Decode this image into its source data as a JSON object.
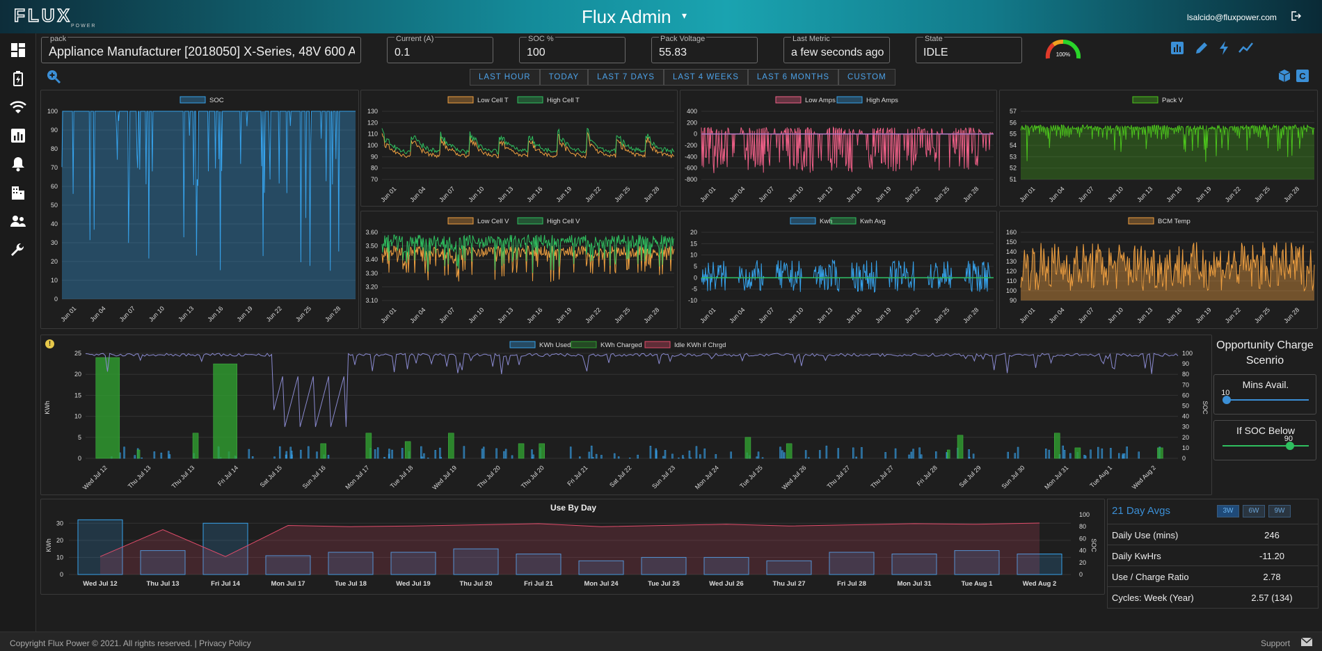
{
  "header": {
    "title": "Flux Admin",
    "user": "lsalcido@fluxpower.com",
    "logo_text": "FLUX POWER"
  },
  "fields": {
    "pack": {
      "label": "pack",
      "value": "Appliance Manufacturer [2018050] X-Series, 48V 600 A"
    },
    "current": {
      "label": "Current (A)",
      "value": "0.1"
    },
    "soc": {
      "label": "SOC %",
      "value": "100"
    },
    "voltage": {
      "label": "Pack Voltage",
      "value": "55.83"
    },
    "last_metric": {
      "label": "Last Metric",
      "value": "a few seconds ago"
    },
    "state": {
      "label": "State",
      "value": "IDLE"
    }
  },
  "gauge": {
    "label": "100%",
    "value": 100
  },
  "time_buttons": [
    "LAST HOUR",
    "TODAY",
    "LAST 7 DAYS",
    "LAST 4 WEEKS",
    "LAST 6 MONTHS",
    "CUSTOM"
  ],
  "icons": {
    "sidebar": [
      "dashboard-icon",
      "battery-icon",
      "wifi-icon",
      "chart-icon",
      "bell-icon",
      "building-icon",
      "users-icon",
      "wrench-icon"
    ],
    "toolbar": [
      "bar-chart-icon",
      "pencil-icon",
      "bolt-icon",
      "trend-line-icon"
    ],
    "zoom": "zoom-in-icon"
  },
  "colors": {
    "accent": "#3b8fd6",
    "blue": "#36a2eb",
    "orange": "#f0a040",
    "green": "#2fbf5f",
    "pink": "#f06088",
    "lime": "#4cc51c",
    "red": "#e04c6a"
  },
  "chart_data": [
    {
      "id": "soc",
      "type": "area",
      "legend": [
        "SOC"
      ],
      "ylim": [
        0,
        100
      ],
      "yticks": [
        0,
        10,
        20,
        30,
        40,
        50,
        60,
        70,
        80,
        90,
        100
      ],
      "xticks": [
        "Jun 01",
        "Jun 04",
        "Jun 07",
        "Jun 10",
        "Jun 13",
        "Jun 16",
        "Jun 19",
        "Jun 22",
        "Jun 25",
        "Jun 28"
      ]
    },
    {
      "id": "cellt",
      "type": "line",
      "legend": [
        "Low Cell T",
        "High Cell T"
      ],
      "ylim": [
        70,
        130
      ],
      "yticks": [
        70,
        80,
        90,
        100,
        110,
        120,
        130
      ],
      "xticks": [
        "Jun 01",
        "Jun 04",
        "Jun 07",
        "Jun 10",
        "Jun 13",
        "Jun 16",
        "Jun 19",
        "Jun 22",
        "Jun 25",
        "Jun 28"
      ]
    },
    {
      "id": "amps",
      "type": "line",
      "legend": [
        "Low Amps",
        "High Amps"
      ],
      "ylim": [
        -800,
        400
      ],
      "yticks": [
        -800,
        -600,
        -400,
        -200,
        0,
        200,
        400
      ],
      "xticks": [
        "Jun 01",
        "Jun 04",
        "Jun 07",
        "Jun 10",
        "Jun 13",
        "Jun 16",
        "Jun 19",
        "Jun 22",
        "Jun 25",
        "Jun 28"
      ]
    },
    {
      "id": "packv",
      "type": "area",
      "legend": [
        "Pack V"
      ],
      "ylim": [
        51,
        57
      ],
      "yticks": [
        51,
        52,
        53,
        54,
        55,
        56,
        57
      ],
      "xticks": [
        "Jun 01",
        "Jun 04",
        "Jun 07",
        "Jun 10",
        "Jun 13",
        "Jun 16",
        "Jun 19",
        "Jun 22",
        "Jun 25",
        "Jun 28"
      ]
    },
    {
      "id": "cellv",
      "type": "line",
      "legend": [
        "Low Cell V",
        "High Cell V"
      ],
      "ylim": [
        3.1,
        3.6
      ],
      "yticks": [
        "3.10",
        "3.20",
        "3.30",
        "3.40",
        "3.50",
        "3.60"
      ],
      "xticks": [
        "Jun 01",
        "Jun 04",
        "Jun 07",
        "Jun 10",
        "Jun 13",
        "Jun 16",
        "Jun 19",
        "Jun 22",
        "Jun 25",
        "Jun 28"
      ]
    },
    {
      "id": "kwh",
      "type": "line",
      "legend": [
        "Kwh",
        "Kwh Avg"
      ],
      "ylim": [
        -10,
        20
      ],
      "yticks": [
        -10,
        -5,
        0,
        5,
        10,
        15,
        20
      ],
      "xticks": [
        "Jun 01",
        "Jun 04",
        "Jun 07",
        "Jun 10",
        "Jun 13",
        "Jun 16",
        "Jun 19",
        "Jun 22",
        "Jun 25",
        "Jun 28"
      ]
    },
    {
      "id": "bcm",
      "type": "area",
      "legend": [
        "BCM Temp"
      ],
      "ylim": [
        90,
        160
      ],
      "yticks": [
        90,
        100,
        110,
        120,
        130,
        140,
        150,
        160
      ],
      "xticks": [
        "Jun 01",
        "Jun 04",
        "Jun 07",
        "Jun 10",
        "Jun 13",
        "Jun 16",
        "Jun 19",
        "Jun 22",
        "Jun 25",
        "Jun 28"
      ]
    },
    {
      "id": "opportunity",
      "type": "bar",
      "legend": [
        "KWh Used",
        "KWh Charged",
        "Idle KWh if Chrgd"
      ],
      "ylabel": "KWh",
      "y2label": "SOC",
      "ylim": [
        0,
        25
      ],
      "y2lim": [
        0,
        100
      ],
      "yticks": [
        0,
        5,
        10,
        15,
        20,
        25
      ],
      "y2ticks": [
        0,
        10,
        20,
        30,
        40,
        50,
        60,
        70,
        80,
        90,
        100
      ],
      "xticks": [
        "Wed Jul 12",
        "Thu Jul 13",
        "Thu Jul 13",
        "Fri Jul 14",
        "Sat Jul 15",
        "Sun Jul 16",
        "Mon Jul 17",
        "Tue Jul 18",
        "Wed Jul 19",
        "Thu Jul 20",
        "Thu Jul 20",
        "Fri Jul 21",
        "Sat Jul 22",
        "Sun Jul 23",
        "Mon Jul 24",
        "Tue Jul 25",
        "Wed Jul 26",
        "Thu Jul 27",
        "Thu Jul 27",
        "Fri Jul 28",
        "Sat Jul 29",
        "Sun Jul 30",
        "Mon Jul 31",
        "Tue Aug 1",
        "Wed Aug 2"
      ],
      "charged": [
        [
          0.5,
          24
        ],
        [
          2.5,
          2
        ],
        [
          5.2,
          6
        ],
        [
          6.2,
          22.5
        ],
        [
          11.4,
          3.5
        ],
        [
          13.6,
          6
        ],
        [
          15.5,
          4
        ],
        [
          17.6,
          6
        ],
        [
          21,
          3.5
        ],
        [
          22,
          3.5
        ],
        [
          32,
          5
        ],
        [
          34,
          3.5
        ],
        [
          41.8,
          2
        ],
        [
          42.3,
          5.5
        ],
        [
          47,
          6
        ],
        [
          48,
          2.5
        ],
        [
          52,
          2.5
        ]
      ]
    },
    {
      "id": "use_by_day",
      "type": "bar",
      "title": "Use By Day",
      "ylabel": "KWh",
      "y2label": "SOC",
      "ylim": [
        0,
        35
      ],
      "y2lim": [
        0,
        100
      ],
      "yticks": [
        0,
        10,
        20,
        30
      ],
      "y2ticks": [
        0,
        20,
        40,
        60,
        80,
        100
      ],
      "categories": [
        "Wed Jul 12",
        "Thu Jul 13",
        "Fri Jul 14",
        "Mon Jul 17",
        "Tue Jul 18",
        "Wed Jul 19",
        "Thu Jul 20",
        "Fri Jul 21",
        "Mon Jul 24",
        "Tue Jul 25",
        "Wed Jul 26",
        "Thu Jul 27",
        "Fri Jul 28",
        "Mon Jul 31",
        "Tue Aug 1",
        "Wed Aug 2"
      ],
      "values": [
        32,
        14,
        30,
        11,
        13,
        13,
        15,
        12,
        8,
        10,
        10,
        8,
        13,
        12,
        14,
        12
      ],
      "soc": [
        30,
        75,
        30,
        82,
        80,
        81,
        83,
        85,
        80,
        82,
        84,
        81,
        83,
        85,
        84,
        86
      ]
    }
  ],
  "opportunity": {
    "title": "Opportunity Charge Scenrio",
    "mins_label": "Mins Avail.",
    "mins_value": "10",
    "soc_label": "If SOC Below",
    "soc_value": "90",
    "mins_fraction": 0.05,
    "soc_fraction": 0.78
  },
  "avgs": {
    "title": "21 Day Avgs",
    "tabs": [
      "3W",
      "6W",
      "9W"
    ],
    "rows": [
      {
        "label": "Daily Use (mins)",
        "value": "246"
      },
      {
        "label": "Daily KwHrs",
        "value": "-11.20"
      },
      {
        "label": "Use / Charge Ratio",
        "value": "2.78"
      },
      {
        "label": "Cycles: Week (Year)",
        "value": "2.57 (134)"
      }
    ]
  },
  "footer": {
    "copyright": "Copyright Flux Power © 2021. All rights reserved. | Privacy Policy",
    "support": "Support"
  }
}
